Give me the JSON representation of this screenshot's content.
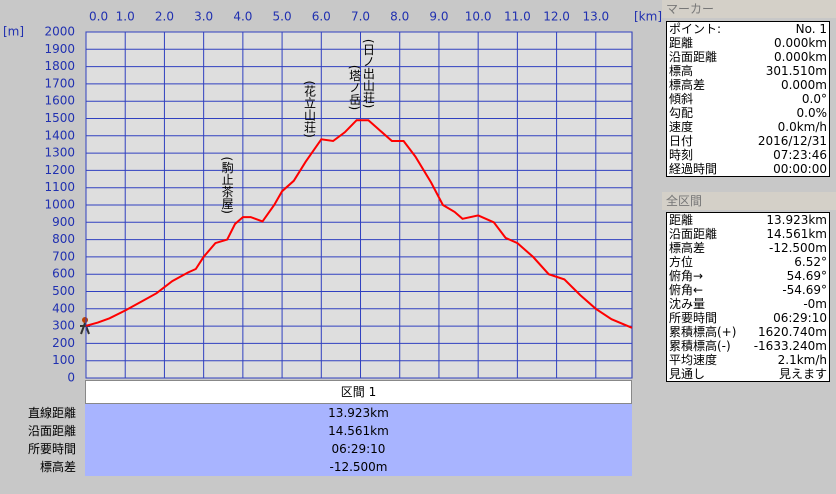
{
  "chart_data": {
    "type": "line",
    "xlabel": "[km]",
    "ylabel": "[m]",
    "x": [
      0,
      0.3,
      0.6,
      1.0,
      1.4,
      1.8,
      2.2,
      2.6,
      2.8,
      3.0,
      3.3,
      3.6,
      3.8,
      4.0,
      4.2,
      4.5,
      4.8,
      5.0,
      5.3,
      5.6,
      6.0,
      6.3,
      6.6,
      6.9,
      7.2,
      7.5,
      7.8,
      8.1,
      8.4,
      8.8,
      9.1,
      9.4,
      9.6,
      10.0,
      10.4,
      10.7,
      11.0,
      11.4,
      11.8,
      12.2,
      12.6,
      13.0,
      13.4,
      13.923
    ],
    "series": [
      {
        "color": "#ff0000",
        "values": [
          301.5,
          320,
          345,
          390,
          440,
          490,
          560,
          610,
          630,
          700,
          780,
          800,
          890,
          930,
          930,
          905,
          1000,
          1080,
          1140,
          1250,
          1380,
          1370,
          1420,
          1490,
          1490,
          1430,
          1370,
          1370,
          1280,
          1130,
          1000,
          960,
          920,
          940,
          900,
          810,
          780,
          700,
          600,
          570,
          480,
          400,
          340,
          290
        ]
      }
    ],
    "xlim": [
      0,
      13.923
    ],
    "xticks": [
      {
        "value": 0,
        "label": "0.0"
      },
      {
        "value": 1,
        "label": "1.0"
      },
      {
        "value": 2,
        "label": "2.0"
      },
      {
        "value": 3,
        "label": "3.0"
      },
      {
        "value": 4,
        "label": "4.0"
      },
      {
        "value": 5,
        "label": "5.0"
      },
      {
        "value": 6,
        "label": "6.0"
      },
      {
        "value": 7,
        "label": "7.0"
      },
      {
        "value": 8,
        "label": "8.0"
      },
      {
        "value": 9,
        "label": "9.0"
      },
      {
        "value": 10,
        "label": "10.0"
      },
      {
        "value": 11,
        "label": "11.0"
      },
      {
        "value": 12,
        "label": "12.0"
      },
      {
        "value": 13,
        "label": "13.0"
      }
    ],
    "ylim": [
      0,
      2000
    ],
    "yticks": [
      0,
      100,
      200,
      300,
      400,
      500,
      600,
      700,
      800,
      900,
      1000,
      1100,
      1200,
      1300,
      1400,
      1500,
      1600,
      1700,
      1800,
      1900,
      2000
    ],
    "grid": true,
    "annotations": [
      {
        "text": "(駒止茶屋)",
        "x": 3.6,
        "y": 1280
      },
      {
        "text": "(花立山荘)",
        "x": 5.7,
        "y": 1720
      },
      {
        "text": "(塔ノ岳)",
        "x": 6.85,
        "y": 1810
      },
      {
        "text": "(日ノ出山荘)",
        "x": 7.2,
        "y": 1960
      }
    ]
  },
  "summary": {
    "header": "区間 1",
    "rows": [
      [
        "直線距離",
        "13.923km"
      ],
      [
        "沿面距離",
        "14.561km"
      ],
      [
        "所要時間",
        "06:29:10"
      ],
      [
        "標高差",
        "-12.500m"
      ]
    ]
  },
  "marker_panel": {
    "title": "マーカー",
    "rows": [
      [
        "ポイント:",
        "No. 1"
      ],
      [
        "距離",
        "0.000km"
      ],
      [
        "沿面距離",
        "0.000km"
      ],
      [
        "標高",
        "301.510m"
      ],
      [
        "標高差",
        "0.000m"
      ],
      [
        "傾斜",
        "0.0°"
      ],
      [
        "勾配",
        "0.0%"
      ],
      [
        "速度",
        "0.0km/h"
      ],
      [
        "日付",
        "2016/12/31"
      ],
      [
        "時刻",
        "07:23:46"
      ],
      [
        "経過時間",
        "00:00:00"
      ]
    ]
  },
  "total_panel": {
    "title": "全区間",
    "rows": [
      [
        "距離",
        "13.923km"
      ],
      [
        "沿面距離",
        "14.561km"
      ],
      [
        "標高差",
        "-12.500m"
      ],
      [
        "方位",
        "6.52°"
      ],
      [
        "俯角→",
        "54.69°"
      ],
      [
        "俯角←",
        "-54.69°"
      ],
      [
        "沈み量",
        "-0m"
      ],
      [
        "所要時間",
        "06:29:10"
      ],
      [
        "累積標高(+)",
        "1620.740m"
      ],
      [
        "累積標高(-)",
        "-1633.240m"
      ],
      [
        "平均速度",
        "2.1km/h"
      ],
      [
        "見通し",
        "見えます"
      ]
    ]
  }
}
